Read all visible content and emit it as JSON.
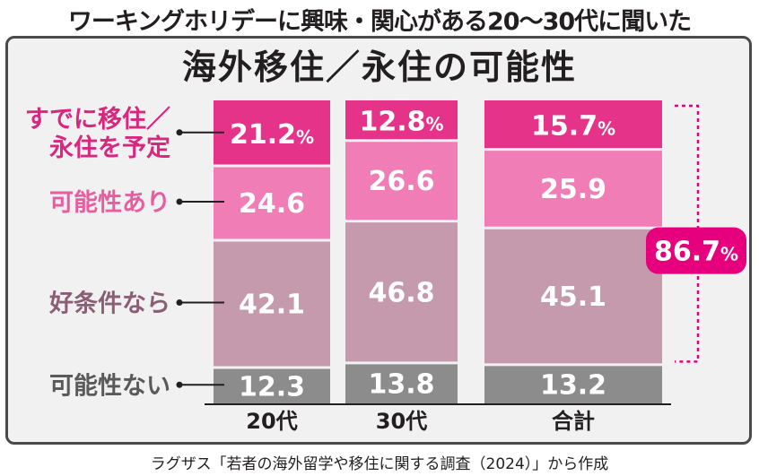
{
  "chart_data": {
    "type": "bar",
    "stacked": true,
    "supertitle": "ワーキングホリデーに興味・関心がある20〜30代に聞いた",
    "title": "海外移住／永住の可能性",
    "categories": [
      "20代",
      "30代",
      "合計"
    ],
    "series": [
      {
        "name": "すでに移住／永住を予定",
        "name_lines": [
          "すでに移住／",
          "永住を予定"
        ],
        "color": "#e6338a",
        "text_color": "#d9267e",
        "values": [
          21.2,
          12.8,
          15.7
        ],
        "labels": [
          "21.2%",
          "12.8%",
          "15.7%"
        ]
      },
      {
        "name": "可能性あり",
        "name_lines": [
          "可能性あり"
        ],
        "color": "#f07db6",
        "text_color": "#e85d9f",
        "values": [
          24.6,
          26.6,
          25.9
        ],
        "labels": [
          "24.6",
          "26.6",
          "25.9"
        ]
      },
      {
        "name": "好条件なら",
        "name_lines": [
          "好条件なら"
        ],
        "color": "#c49aac",
        "text_color": "#8a5f75",
        "values": [
          42.1,
          46.8,
          45.1
        ],
        "labels": [
          "42.1",
          "46.8",
          "45.1"
        ]
      },
      {
        "name": "可能性ない",
        "name_lines": [
          "可能性ない"
        ],
        "color": "#8c8c8c",
        "text_color": "#5a5a5a",
        "values": [
          12.3,
          13.8,
          13.2
        ],
        "labels": [
          "12.3",
          "13.8",
          "13.2"
        ]
      }
    ],
    "total_annotation": {
      "value": 86.7,
      "label": "86.7%",
      "color": "#e6007e"
    },
    "ylim": [
      0,
      100
    ],
    "legend": "left",
    "grid": false
  },
  "source": "ラグザス「若者の海外留学や移住に関する調査（2024）」から作成"
}
